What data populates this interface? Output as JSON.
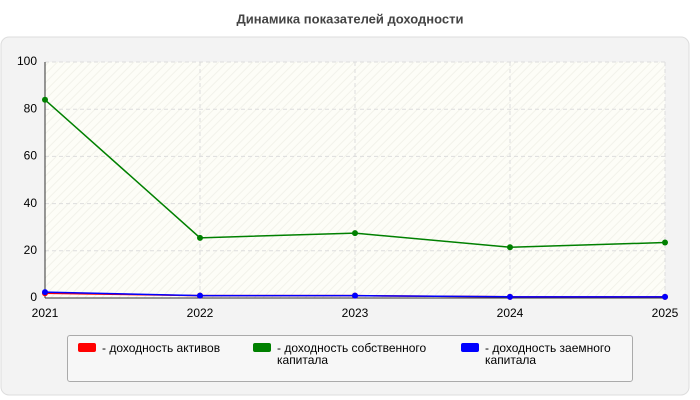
{
  "chart_data": {
    "type": "line",
    "title": "Динамика показателей доходности",
    "x": [
      2021,
      2022,
      2023,
      2024,
      2025
    ],
    "xlim": [
      2021,
      2025
    ],
    "xticks": [
      2021,
      2022,
      2023,
      2024,
      2025
    ],
    "ylim": [
      0,
      100
    ],
    "yticks": [
      0,
      20,
      40,
      60,
      80,
      100
    ],
    "grid": true,
    "legend": "bottom",
    "series": [
      {
        "name": "- доходность активов",
        "color": "#ff0000",
        "values": [
          2,
          1,
          1,
          0.5,
          0.5
        ]
      },
      {
        "name": "- доходность собственного капитала",
        "color": "#008000",
        "values": [
          84,
          25.5,
          27.5,
          21.5,
          23.5
        ]
      },
      {
        "name": "- доходность заемного капитала",
        "color": "#0000ff",
        "values": [
          2.5,
          1,
          1,
          0.5,
          0.5
        ]
      }
    ]
  }
}
